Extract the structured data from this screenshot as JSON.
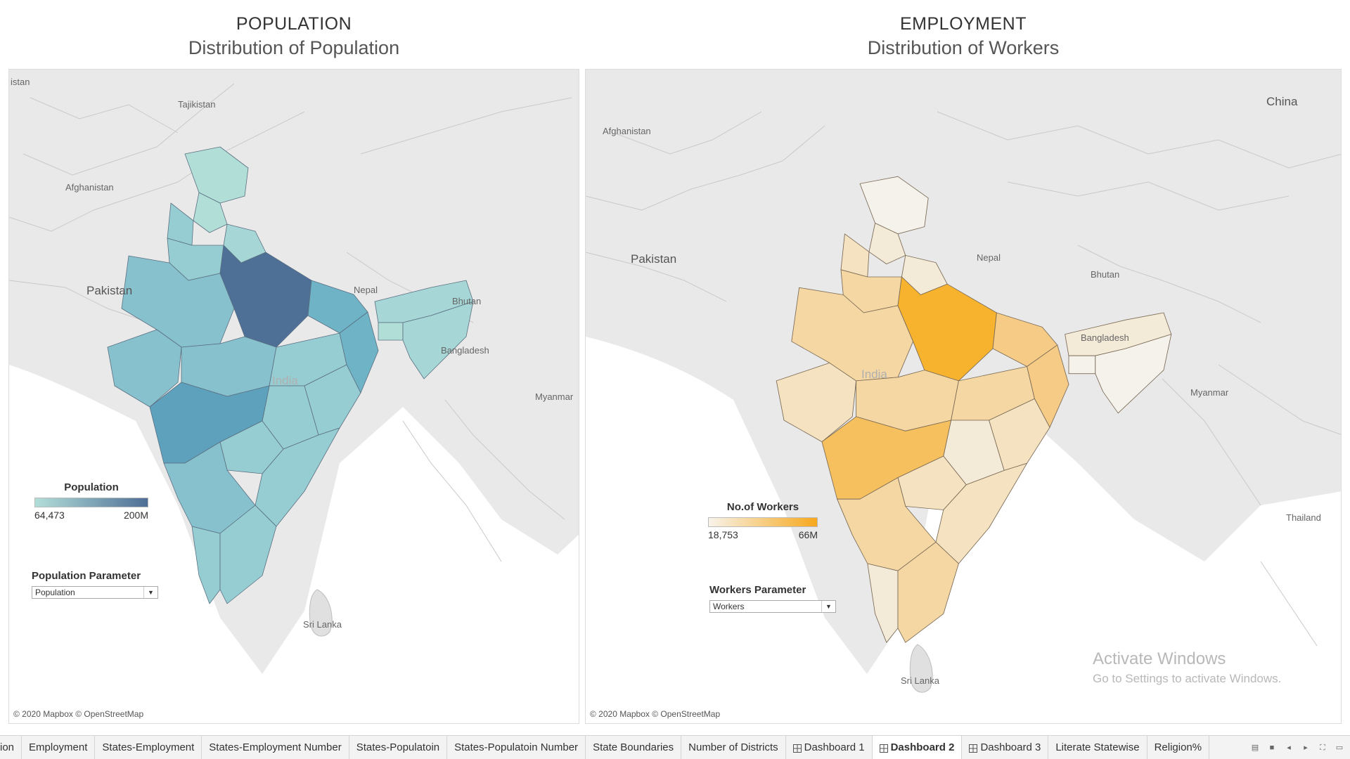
{
  "left_panel": {
    "title": "POPULATION",
    "subtitle": "Distribution of Population",
    "places": {
      "tajikistan": "Tajikistan",
      "istan": "istan",
      "afghanistan": "Afghanistan",
      "pakistan": "Pakistan",
      "nepal": "Nepal",
      "bhutan": "Bhutan",
      "bangladesh": "Bangladesh",
      "myanmar": "Myanmar",
      "india": "India",
      "sri_lanka": "Sri Lanka"
    },
    "legend": {
      "title": "Population",
      "min": "64,473",
      "max": "200M",
      "color_low": "#b2ded8",
      "color_high": "#4e6f96"
    },
    "parameter": {
      "title": "Population Parameter",
      "value": "Population"
    },
    "attribution": "© 2020 Mapbox © OpenStreetMap"
  },
  "right_panel": {
    "title": "EMPLOYMENT",
    "subtitle": "Distribution of Workers",
    "places": {
      "china": "China",
      "afghanistan": "Afghanistan",
      "pakistan": "Pakistan",
      "nepal": "Nepal",
      "bhutan": "Bhutan",
      "bangladesh": "Bangladesh",
      "myanmar": "Myanmar",
      "thailand": "Thailand",
      "india": "India",
      "sri_lanka": "Sri Lanka"
    },
    "legend": {
      "title": "No.of Workers",
      "min": "18,753",
      "max": "66M",
      "color_low": "#f7f3ea",
      "color_high": "#f7a81d"
    },
    "parameter": {
      "title": "Workers Parameter",
      "value": "Workers"
    },
    "attribution": "© 2020 Mapbox © OpenStreetMap"
  },
  "watermark": {
    "line1": "Activate Windows",
    "line2": "Go to Settings to activate Windows."
  },
  "tabs": [
    {
      "label": "ion",
      "icon": ""
    },
    {
      "label": "Employment",
      "icon": ""
    },
    {
      "label": "States-Employment",
      "icon": ""
    },
    {
      "label": "States-Employment Number",
      "icon": ""
    },
    {
      "label": "States-Populatoin",
      "icon": ""
    },
    {
      "label": "States-Populatoin Number",
      "icon": ""
    },
    {
      "label": "State Boundaries",
      "icon": ""
    },
    {
      "label": "Number of Districts",
      "icon": ""
    },
    {
      "label": "Dashboard 1",
      "icon": "dashboard-icon"
    },
    {
      "label": "Dashboard 2",
      "icon": "dashboard-icon",
      "active": true
    },
    {
      "label": "Dashboard 3",
      "icon": "dashboard-icon"
    },
    {
      "label": "Literate Statewise",
      "icon": ""
    },
    {
      "label": "Religion%",
      "icon": ""
    }
  ],
  "colors": {
    "map_bg": "#e9e9e9",
    "water": "#ffffff",
    "pop_shades": [
      "#b2ded8",
      "#a6d6d6",
      "#96cdd2",
      "#86c1cd",
      "#6fb3c6",
      "#5ea1bd",
      "#4e6f96"
    ],
    "work_shades": [
      "#f5f2ec",
      "#f4ead8",
      "#f5e2c0",
      "#f5d7a3",
      "#f6cb85",
      "#f6c05f",
      "#f7b32e"
    ]
  }
}
